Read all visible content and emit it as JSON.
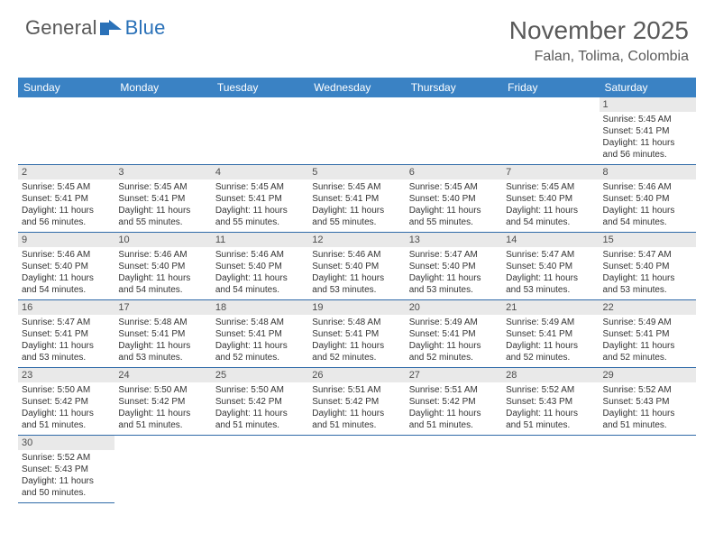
{
  "logo": {
    "word1": "General",
    "word2": "Blue"
  },
  "header": {
    "title": "November 2025",
    "location": "Falan, Tolima, Colombia"
  },
  "weekdays": [
    "Sunday",
    "Monday",
    "Tuesday",
    "Wednesday",
    "Thursday",
    "Friday",
    "Saturday"
  ],
  "colors": {
    "header_bg": "#3a82c4",
    "header_text": "#ffffff",
    "border": "#2f6aa8",
    "daynum_bg": "#e9e9e9"
  },
  "days": {
    "1": {
      "sunrise": "Sunrise: 5:45 AM",
      "sunset": "Sunset: 5:41 PM",
      "dl1": "Daylight: 11 hours",
      "dl2": "and 56 minutes."
    },
    "2": {
      "sunrise": "Sunrise: 5:45 AM",
      "sunset": "Sunset: 5:41 PM",
      "dl1": "Daylight: 11 hours",
      "dl2": "and 56 minutes."
    },
    "3": {
      "sunrise": "Sunrise: 5:45 AM",
      "sunset": "Sunset: 5:41 PM",
      "dl1": "Daylight: 11 hours",
      "dl2": "and 55 minutes."
    },
    "4": {
      "sunrise": "Sunrise: 5:45 AM",
      "sunset": "Sunset: 5:41 PM",
      "dl1": "Daylight: 11 hours",
      "dl2": "and 55 minutes."
    },
    "5": {
      "sunrise": "Sunrise: 5:45 AM",
      "sunset": "Sunset: 5:41 PM",
      "dl1": "Daylight: 11 hours",
      "dl2": "and 55 minutes."
    },
    "6": {
      "sunrise": "Sunrise: 5:45 AM",
      "sunset": "Sunset: 5:40 PM",
      "dl1": "Daylight: 11 hours",
      "dl2": "and 55 minutes."
    },
    "7": {
      "sunrise": "Sunrise: 5:45 AM",
      "sunset": "Sunset: 5:40 PM",
      "dl1": "Daylight: 11 hours",
      "dl2": "and 54 minutes."
    },
    "8": {
      "sunrise": "Sunrise: 5:46 AM",
      "sunset": "Sunset: 5:40 PM",
      "dl1": "Daylight: 11 hours",
      "dl2": "and 54 minutes."
    },
    "9": {
      "sunrise": "Sunrise: 5:46 AM",
      "sunset": "Sunset: 5:40 PM",
      "dl1": "Daylight: 11 hours",
      "dl2": "and 54 minutes."
    },
    "10": {
      "sunrise": "Sunrise: 5:46 AM",
      "sunset": "Sunset: 5:40 PM",
      "dl1": "Daylight: 11 hours",
      "dl2": "and 54 minutes."
    },
    "11": {
      "sunrise": "Sunrise: 5:46 AM",
      "sunset": "Sunset: 5:40 PM",
      "dl1": "Daylight: 11 hours",
      "dl2": "and 54 minutes."
    },
    "12": {
      "sunrise": "Sunrise: 5:46 AM",
      "sunset": "Sunset: 5:40 PM",
      "dl1": "Daylight: 11 hours",
      "dl2": "and 53 minutes."
    },
    "13": {
      "sunrise": "Sunrise: 5:47 AM",
      "sunset": "Sunset: 5:40 PM",
      "dl1": "Daylight: 11 hours",
      "dl2": "and 53 minutes."
    },
    "14": {
      "sunrise": "Sunrise: 5:47 AM",
      "sunset": "Sunset: 5:40 PM",
      "dl1": "Daylight: 11 hours",
      "dl2": "and 53 minutes."
    },
    "15": {
      "sunrise": "Sunrise: 5:47 AM",
      "sunset": "Sunset: 5:40 PM",
      "dl1": "Daylight: 11 hours",
      "dl2": "and 53 minutes."
    },
    "16": {
      "sunrise": "Sunrise: 5:47 AM",
      "sunset": "Sunset: 5:41 PM",
      "dl1": "Daylight: 11 hours",
      "dl2": "and 53 minutes."
    },
    "17": {
      "sunrise": "Sunrise: 5:48 AM",
      "sunset": "Sunset: 5:41 PM",
      "dl1": "Daylight: 11 hours",
      "dl2": "and 53 minutes."
    },
    "18": {
      "sunrise": "Sunrise: 5:48 AM",
      "sunset": "Sunset: 5:41 PM",
      "dl1": "Daylight: 11 hours",
      "dl2": "and 52 minutes."
    },
    "19": {
      "sunrise": "Sunrise: 5:48 AM",
      "sunset": "Sunset: 5:41 PM",
      "dl1": "Daylight: 11 hours",
      "dl2": "and 52 minutes."
    },
    "20": {
      "sunrise": "Sunrise: 5:49 AM",
      "sunset": "Sunset: 5:41 PM",
      "dl1": "Daylight: 11 hours",
      "dl2": "and 52 minutes."
    },
    "21": {
      "sunrise": "Sunrise: 5:49 AM",
      "sunset": "Sunset: 5:41 PM",
      "dl1": "Daylight: 11 hours",
      "dl2": "and 52 minutes."
    },
    "22": {
      "sunrise": "Sunrise: 5:49 AM",
      "sunset": "Sunset: 5:41 PM",
      "dl1": "Daylight: 11 hours",
      "dl2": "and 52 minutes."
    },
    "23": {
      "sunrise": "Sunrise: 5:50 AM",
      "sunset": "Sunset: 5:42 PM",
      "dl1": "Daylight: 11 hours",
      "dl2": "and 51 minutes."
    },
    "24": {
      "sunrise": "Sunrise: 5:50 AM",
      "sunset": "Sunset: 5:42 PM",
      "dl1": "Daylight: 11 hours",
      "dl2": "and 51 minutes."
    },
    "25": {
      "sunrise": "Sunrise: 5:50 AM",
      "sunset": "Sunset: 5:42 PM",
      "dl1": "Daylight: 11 hours",
      "dl2": "and 51 minutes."
    },
    "26": {
      "sunrise": "Sunrise: 5:51 AM",
      "sunset": "Sunset: 5:42 PM",
      "dl1": "Daylight: 11 hours",
      "dl2": "and 51 minutes."
    },
    "27": {
      "sunrise": "Sunrise: 5:51 AM",
      "sunset": "Sunset: 5:42 PM",
      "dl1": "Daylight: 11 hours",
      "dl2": "and 51 minutes."
    },
    "28": {
      "sunrise": "Sunrise: 5:52 AM",
      "sunset": "Sunset: 5:43 PM",
      "dl1": "Daylight: 11 hours",
      "dl2": "and 51 minutes."
    },
    "29": {
      "sunrise": "Sunrise: 5:52 AM",
      "sunset": "Sunset: 5:43 PM",
      "dl1": "Daylight: 11 hours",
      "dl2": "and 51 minutes."
    },
    "30": {
      "sunrise": "Sunrise: 5:52 AM",
      "sunset": "Sunset: 5:43 PM",
      "dl1": "Daylight: 11 hours",
      "dl2": "and 50 minutes."
    }
  },
  "layout": {
    "first_weekday_index": 6,
    "num_days": 30,
    "columns": 7,
    "rows": 6
  }
}
